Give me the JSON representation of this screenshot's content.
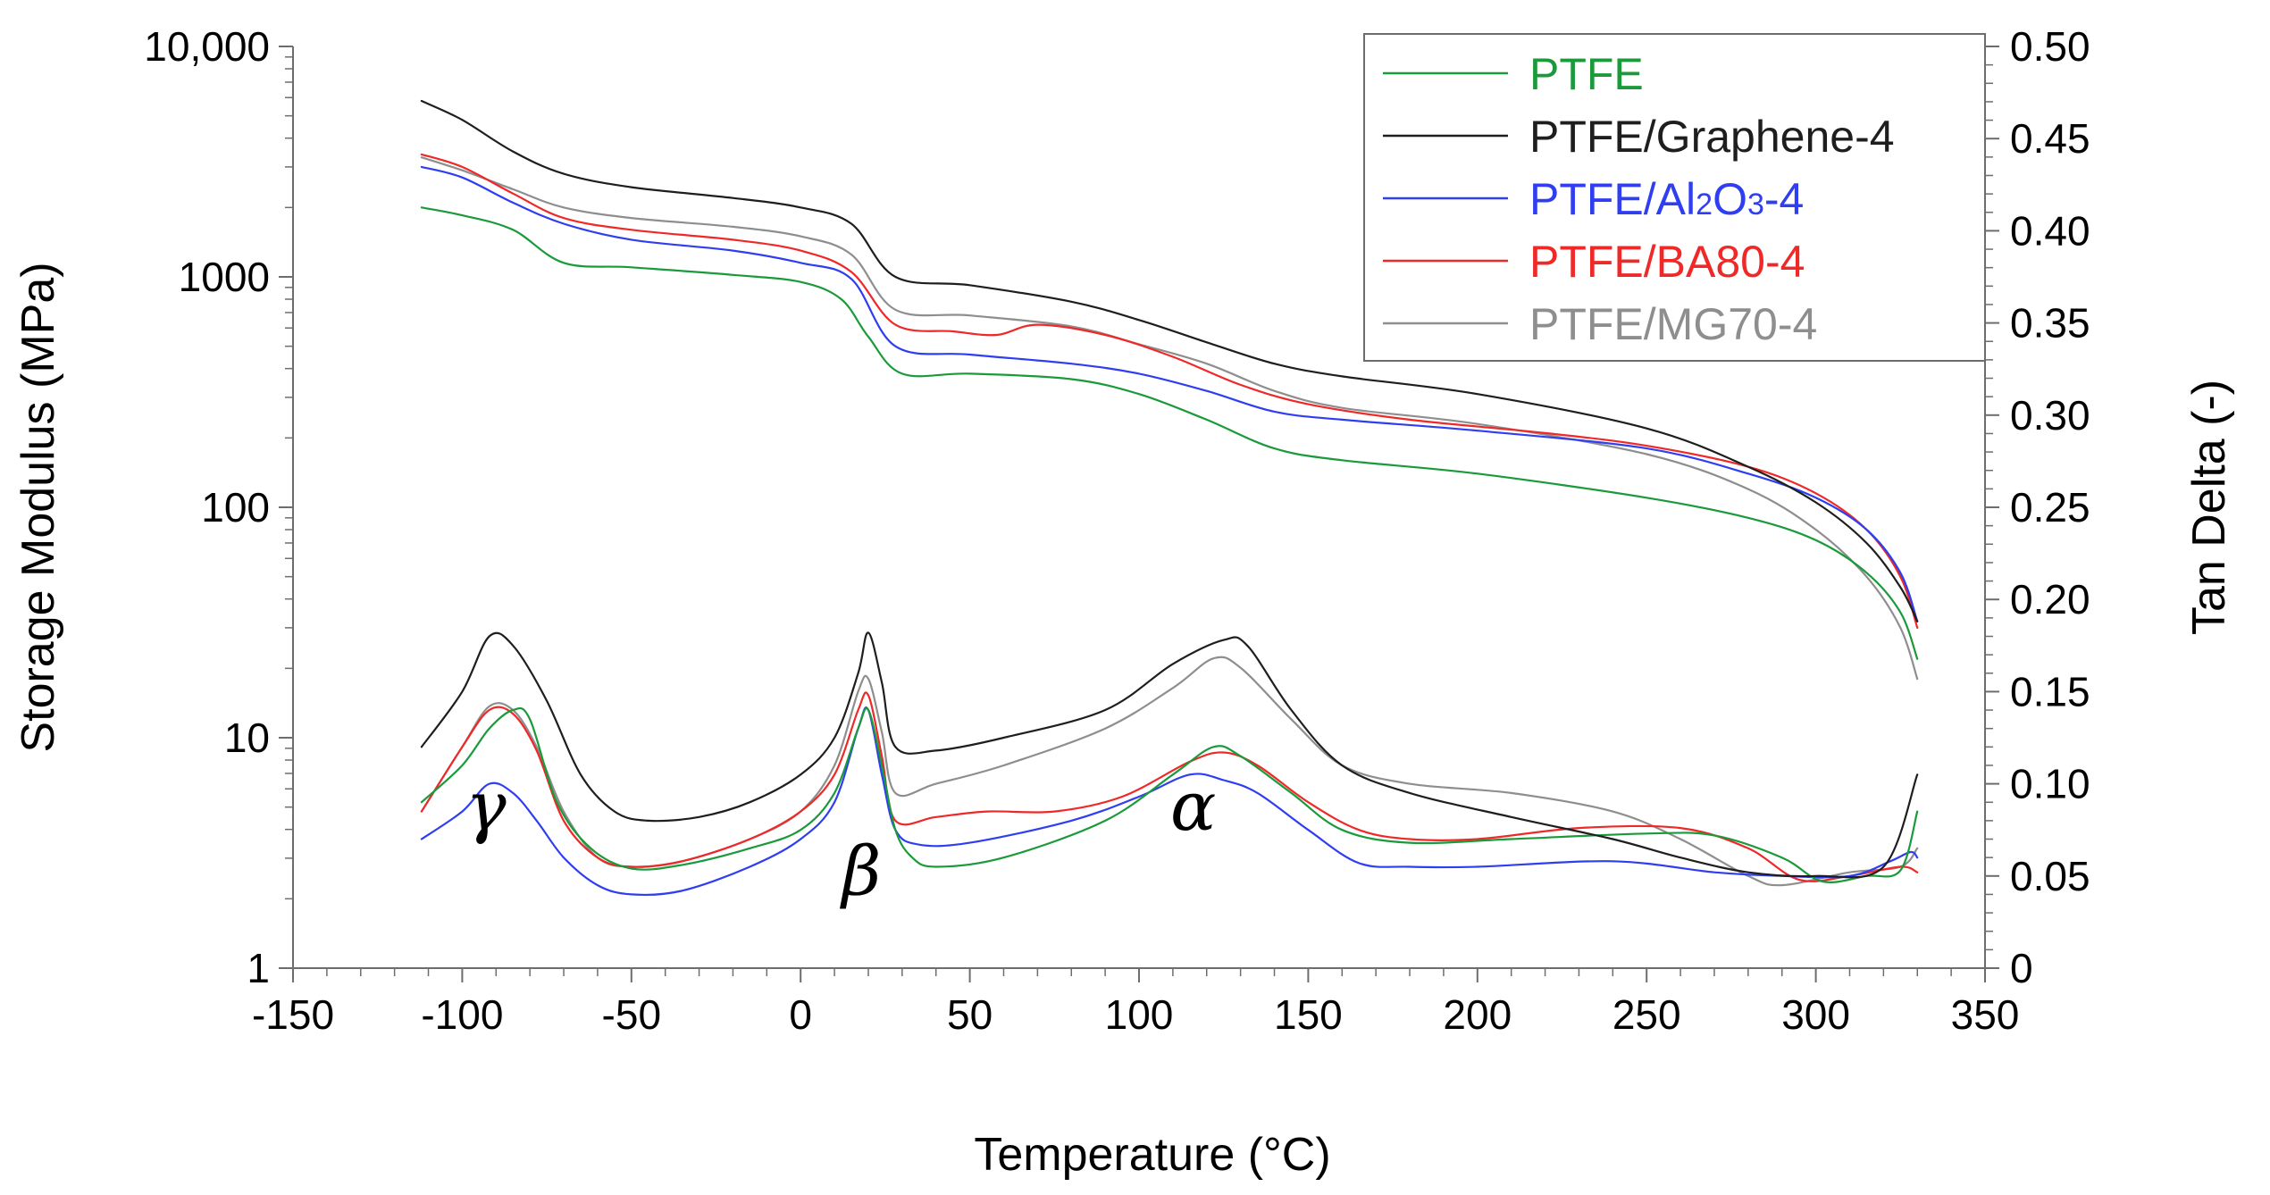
{
  "chart_data": {
    "type": "line",
    "title": "",
    "xlabel": "Temperature (°C)",
    "ylabel_left": "Storage Modulus (MPa)",
    "ylabel_right": "Tan Delta (-)",
    "xlim": [
      -150,
      350
    ],
    "ylim_left": [
      1,
      10000
    ],
    "yscale_left": "log",
    "ylim_right": [
      0,
      0.5
    ],
    "x_ticks": [
      -150,
      -100,
      -50,
      0,
      50,
      100,
      150,
      200,
      250,
      300,
      350
    ],
    "x_tick_labels": [
      "-150",
      "-100",
      "-50",
      "0",
      "50",
      "100",
      "150",
      "200",
      "250",
      "300",
      "350"
    ],
    "y_left_ticks": [
      1,
      10,
      100,
      1000,
      10000
    ],
    "y_left_tick_labels": [
      "1",
      "10",
      "100",
      "1000",
      "10,000"
    ],
    "y_right_ticks": [
      0,
      0.05,
      0.1,
      0.15,
      0.2,
      0.25,
      0.3,
      0.35,
      0.4,
      0.45,
      0.5
    ],
    "y_right_tick_labels": [
      "0",
      "0.05",
      "0.10",
      "0.15",
      "0.20",
      "0.25",
      "0.30",
      "0.35",
      "0.40",
      "0.45",
      "0.50"
    ],
    "legend_position": "top-right",
    "annotations": [
      {
        "text": "γ",
        "x": -93,
        "tan": 0.075
      },
      {
        "text": "β",
        "x": 18,
        "tan": 0.04
      },
      {
        "text": "α",
        "x": 116,
        "tan": 0.075
      }
    ],
    "series": [
      {
        "name": "PTFE",
        "color": "#1a9a3a",
        "modulus": [
          [
            -112,
            2000
          ],
          [
            -100,
            1850
          ],
          [
            -85,
            1600
          ],
          [
            -70,
            1150
          ],
          [
            -50,
            1100
          ],
          [
            -20,
            1020
          ],
          [
            0,
            950
          ],
          [
            12,
            800
          ],
          [
            20,
            550
          ],
          [
            30,
            380
          ],
          [
            50,
            380
          ],
          [
            80,
            360
          ],
          [
            100,
            310
          ],
          [
            120,
            240
          ],
          [
            140,
            180
          ],
          [
            160,
            160
          ],
          [
            200,
            140
          ],
          [
            250,
            110
          ],
          [
            280,
            90
          ],
          [
            300,
            72
          ],
          [
            315,
            52
          ],
          [
            325,
            35
          ],
          [
            330,
            22
          ]
        ],
        "tan": [
          [
            -112,
            0.09
          ],
          [
            -100,
            0.11
          ],
          [
            -92,
            0.13
          ],
          [
            -85,
            0.14
          ],
          [
            -80,
            0.135
          ],
          [
            -72,
            0.09
          ],
          [
            -62,
            0.065
          ],
          [
            -50,
            0.054
          ],
          [
            -35,
            0.056
          ],
          [
            -15,
            0.065
          ],
          [
            0,
            0.075
          ],
          [
            10,
            0.095
          ],
          [
            17,
            0.13
          ],
          [
            20,
            0.14
          ],
          [
            24,
            0.11
          ],
          [
            28,
            0.075
          ],
          [
            33,
            0.06
          ],
          [
            40,
            0.055
          ],
          [
            60,
            0.06
          ],
          [
            90,
            0.08
          ],
          [
            110,
            0.105
          ],
          [
            122,
            0.12
          ],
          [
            130,
            0.115
          ],
          [
            145,
            0.095
          ],
          [
            160,
            0.075
          ],
          [
            180,
            0.068
          ],
          [
            210,
            0.07
          ],
          [
            250,
            0.073
          ],
          [
            270,
            0.072
          ],
          [
            290,
            0.06
          ],
          [
            302,
            0.047
          ],
          [
            315,
            0.05
          ],
          [
            325,
            0.053
          ],
          [
            330,
            0.085
          ]
        ]
      },
      {
        "name": "PTFE/Graphene-4",
        "color": "#1e1e1e",
        "modulus": [
          [
            -112,
            5800
          ],
          [
            -100,
            4800
          ],
          [
            -85,
            3500
          ],
          [
            -70,
            2800
          ],
          [
            -50,
            2450
          ],
          [
            -20,
            2200
          ],
          [
            0,
            2000
          ],
          [
            15,
            1700
          ],
          [
            28,
            1000
          ],
          [
            50,
            920
          ],
          [
            80,
            780
          ],
          [
            100,
            650
          ],
          [
            120,
            520
          ],
          [
            140,
            420
          ],
          [
            160,
            370
          ],
          [
            200,
            310
          ],
          [
            250,
            220
          ],
          [
            280,
            150
          ],
          [
            300,
            105
          ],
          [
            315,
            70
          ],
          [
            325,
            45
          ],
          [
            330,
            32
          ]
        ],
        "tan": [
          [
            -112,
            0.12
          ],
          [
            -100,
            0.15
          ],
          [
            -92,
            0.18
          ],
          [
            -85,
            0.175
          ],
          [
            -75,
            0.145
          ],
          [
            -65,
            0.105
          ],
          [
            -55,
            0.085
          ],
          [
            -45,
            0.08
          ],
          [
            -30,
            0.082
          ],
          [
            -15,
            0.09
          ],
          [
            0,
            0.105
          ],
          [
            10,
            0.125
          ],
          [
            17,
            0.16
          ],
          [
            20,
            0.182
          ],
          [
            24,
            0.155
          ],
          [
            28,
            0.12
          ],
          [
            40,
            0.118
          ],
          [
            60,
            0.125
          ],
          [
            90,
            0.14
          ],
          [
            110,
            0.165
          ],
          [
            125,
            0.178
          ],
          [
            132,
            0.175
          ],
          [
            145,
            0.14
          ],
          [
            160,
            0.11
          ],
          [
            180,
            0.095
          ],
          [
            210,
            0.082
          ],
          [
            240,
            0.07
          ],
          [
            260,
            0.06
          ],
          [
            280,
            0.052
          ],
          [
            300,
            0.05
          ],
          [
            320,
            0.055
          ],
          [
            330,
            0.105
          ]
        ]
      },
      {
        "name": "PTFE/Al2O3-4",
        "color": "#2f3ef0",
        "modulus": [
          [
            -112,
            3000
          ],
          [
            -100,
            2700
          ],
          [
            -85,
            2100
          ],
          [
            -70,
            1700
          ],
          [
            -50,
            1450
          ],
          [
            -20,
            1300
          ],
          [
            0,
            1150
          ],
          [
            15,
            980
          ],
          [
            28,
            500
          ],
          [
            50,
            460
          ],
          [
            80,
            420
          ],
          [
            100,
            380
          ],
          [
            120,
            320
          ],
          [
            140,
            260
          ],
          [
            160,
            240
          ],
          [
            200,
            215
          ],
          [
            250,
            180
          ],
          [
            280,
            140
          ],
          [
            300,
            110
          ],
          [
            315,
            80
          ],
          [
            325,
            52
          ],
          [
            330,
            32
          ]
        ],
        "tan": [
          [
            -112,
            0.07
          ],
          [
            -100,
            0.085
          ],
          [
            -92,
            0.1
          ],
          [
            -85,
            0.095
          ],
          [
            -78,
            0.08
          ],
          [
            -70,
            0.06
          ],
          [
            -60,
            0.045
          ],
          [
            -50,
            0.04
          ],
          [
            -35,
            0.042
          ],
          [
            -15,
            0.055
          ],
          [
            0,
            0.07
          ],
          [
            10,
            0.09
          ],
          [
            17,
            0.13
          ],
          [
            20,
            0.14
          ],
          [
            24,
            0.105
          ],
          [
            28,
            0.075
          ],
          [
            35,
            0.067
          ],
          [
            50,
            0.068
          ],
          [
            80,
            0.08
          ],
          [
            100,
            0.093
          ],
          [
            115,
            0.105
          ],
          [
            125,
            0.102
          ],
          [
            135,
            0.095
          ],
          [
            150,
            0.075
          ],
          [
            165,
            0.057
          ],
          [
            180,
            0.055
          ],
          [
            200,
            0.055
          ],
          [
            240,
            0.058
          ],
          [
            270,
            0.052
          ],
          [
            290,
            0.05
          ],
          [
            310,
            0.05
          ],
          [
            322,
            0.058
          ],
          [
            328,
            0.063
          ],
          [
            330,
            0.06
          ]
        ]
      },
      {
        "name": "PTFE/BA80-4",
        "color": "#ef2828",
        "modulus": [
          [
            -112,
            3400
          ],
          [
            -100,
            3000
          ],
          [
            -85,
            2300
          ],
          [
            -70,
            1800
          ],
          [
            -50,
            1600
          ],
          [
            -20,
            1450
          ],
          [
            0,
            1300
          ],
          [
            15,
            1050
          ],
          [
            28,
            620
          ],
          [
            45,
            580
          ],
          [
            58,
            560
          ],
          [
            70,
            620
          ],
          [
            90,
            560
          ],
          [
            110,
            450
          ],
          [
            130,
            340
          ],
          [
            150,
            280
          ],
          [
            180,
            240
          ],
          [
            220,
            210
          ],
          [
            250,
            185
          ],
          [
            280,
            150
          ],
          [
            300,
            115
          ],
          [
            315,
            80
          ],
          [
            325,
            50
          ],
          [
            330,
            30
          ]
        ],
        "tan": [
          [
            -112,
            0.085
          ],
          [
            -100,
            0.12
          ],
          [
            -92,
            0.14
          ],
          [
            -85,
            0.138
          ],
          [
            -78,
            0.118
          ],
          [
            -70,
            0.08
          ],
          [
            -60,
            0.06
          ],
          [
            -50,
            0.055
          ],
          [
            -35,
            0.058
          ],
          [
            -15,
            0.07
          ],
          [
            0,
            0.085
          ],
          [
            10,
            0.105
          ],
          [
            17,
            0.14
          ],
          [
            20,
            0.148
          ],
          [
            24,
            0.115
          ],
          [
            28,
            0.08
          ],
          [
            40,
            0.082
          ],
          [
            55,
            0.085
          ],
          [
            75,
            0.085
          ],
          [
            95,
            0.093
          ],
          [
            115,
            0.112
          ],
          [
            125,
            0.117
          ],
          [
            135,
            0.11
          ],
          [
            150,
            0.09
          ],
          [
            165,
            0.075
          ],
          [
            180,
            0.07
          ],
          [
            200,
            0.07
          ],
          [
            230,
            0.076
          ],
          [
            260,
            0.076
          ],
          [
            280,
            0.065
          ],
          [
            295,
            0.048
          ],
          [
            310,
            0.05
          ],
          [
            325,
            0.055
          ],
          [
            330,
            0.052
          ]
        ]
      },
      {
        "name": "PTFE/MG70-4",
        "color": "#8e8e8e",
        "modulus": [
          [
            -112,
            3300
          ],
          [
            -100,
            2900
          ],
          [
            -85,
            2400
          ],
          [
            -70,
            2000
          ],
          [
            -50,
            1800
          ],
          [
            -20,
            1650
          ],
          [
            0,
            1500
          ],
          [
            15,
            1250
          ],
          [
            28,
            720
          ],
          [
            50,
            680
          ],
          [
            80,
            610
          ],
          [
            100,
            510
          ],
          [
            120,
            420
          ],
          [
            140,
            320
          ],
          [
            160,
            270
          ],
          [
            200,
            230
          ],
          [
            250,
            170
          ],
          [
            280,
            120
          ],
          [
            300,
            80
          ],
          [
            315,
            50
          ],
          [
            325,
            30
          ],
          [
            330,
            18
          ]
        ],
        "tan": [
          [
            -112,
            0.085
          ],
          [
            -100,
            0.12
          ],
          [
            -92,
            0.142
          ],
          [
            -85,
            0.14
          ],
          [
            -78,
            0.12
          ],
          [
            -70,
            0.085
          ],
          [
            -60,
            0.06
          ],
          [
            -50,
            0.055
          ],
          [
            -35,
            0.058
          ],
          [
            -15,
            0.07
          ],
          [
            0,
            0.085
          ],
          [
            10,
            0.11
          ],
          [
            17,
            0.15
          ],
          [
            20,
            0.157
          ],
          [
            24,
            0.128
          ],
          [
            28,
            0.095
          ],
          [
            40,
            0.1
          ],
          [
            60,
            0.11
          ],
          [
            90,
            0.13
          ],
          [
            110,
            0.152
          ],
          [
            122,
            0.168
          ],
          [
            130,
            0.163
          ],
          [
            145,
            0.135
          ],
          [
            160,
            0.11
          ],
          [
            180,
            0.1
          ],
          [
            210,
            0.095
          ],
          [
            240,
            0.085
          ],
          [
            260,
            0.07
          ],
          [
            280,
            0.05
          ],
          [
            290,
            0.045
          ],
          [
            310,
            0.052
          ],
          [
            325,
            0.055
          ],
          [
            330,
            0.065
          ]
        ]
      }
    ]
  }
}
